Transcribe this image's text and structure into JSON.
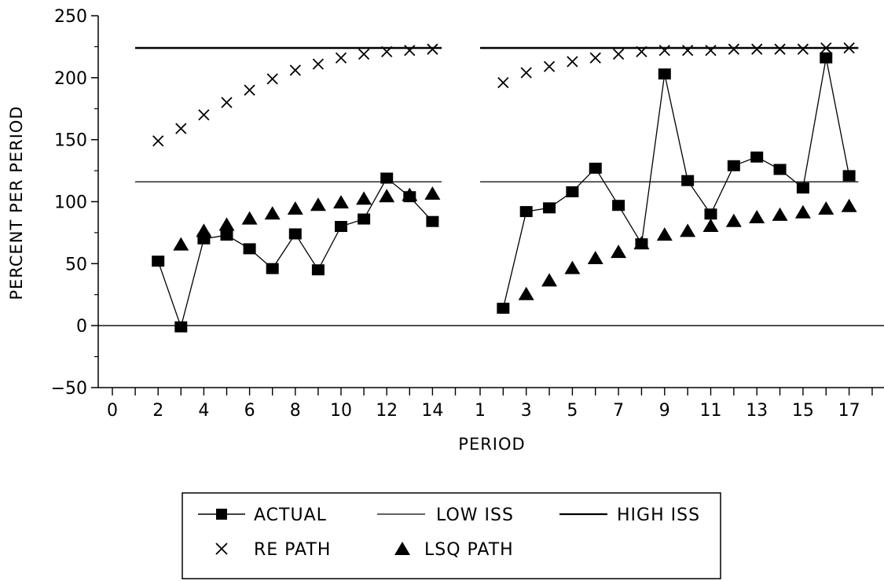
{
  "chart_data": {
    "type": "line",
    "xlabel": "PERIOD",
    "ylabel": "PERCENT PER PERIOD",
    "ylim": [
      -50,
      250
    ],
    "yticks": [
      250,
      200,
      150,
      100,
      50,
      0,
      -50
    ],
    "grid": false,
    "legend_position": "bottom",
    "panels": [
      {
        "xlim": [
          0,
          15
        ],
        "xtick_labels": [
          {
            "x": 0,
            "label": "0"
          },
          {
            "x": 2,
            "label": "2"
          },
          {
            "x": 4,
            "label": "4"
          },
          {
            "x": 6,
            "label": "6"
          },
          {
            "x": 8,
            "label": "8"
          },
          {
            "x": 10,
            "label": "10"
          },
          {
            "x": 12,
            "label": "12"
          },
          {
            "x": 14,
            "label": "14"
          }
        ],
        "high_iss": 224,
        "low_iss": 116,
        "actual": [
          [
            2,
            52
          ],
          [
            3,
            -1
          ],
          [
            4,
            70
          ],
          [
            5,
            73
          ],
          [
            6,
            62
          ],
          [
            7,
            46
          ],
          [
            8,
            74
          ],
          [
            9,
            45
          ],
          [
            10,
            80
          ],
          [
            11,
            86
          ],
          [
            12,
            119
          ],
          [
            13,
            104
          ],
          [
            14,
            84
          ]
        ],
        "re_path": [
          [
            2,
            149
          ],
          [
            3,
            159
          ],
          [
            4,
            170
          ],
          [
            5,
            180
          ],
          [
            6,
            190
          ],
          [
            7,
            199
          ],
          [
            8,
            206
          ],
          [
            9,
            211
          ],
          [
            10,
            216
          ],
          [
            11,
            219
          ],
          [
            12,
            221
          ],
          [
            13,
            222
          ],
          [
            14,
            223
          ]
        ],
        "lsq_path": [
          [
            3,
            65
          ],
          [
            4,
            76
          ],
          [
            5,
            81
          ],
          [
            6,
            86
          ],
          [
            7,
            90
          ],
          [
            8,
            94
          ],
          [
            9,
            97
          ],
          [
            10,
            99
          ],
          [
            11,
            102
          ],
          [
            12,
            104
          ],
          [
            13,
            105
          ],
          [
            14,
            106
          ]
        ]
      },
      {
        "xlim": [
          1,
          18
        ],
        "xtick_labels": [
          {
            "x": 1,
            "label": "1"
          },
          {
            "x": 3,
            "label": "3"
          },
          {
            "x": 5,
            "label": "5"
          },
          {
            "x": 7,
            "label": "7"
          },
          {
            "x": 9,
            "label": "9"
          },
          {
            "x": 11,
            "label": "11"
          },
          {
            "x": 13,
            "label": "13"
          },
          {
            "x": 15,
            "label": "15"
          },
          {
            "x": 17,
            "label": "17"
          }
        ],
        "high_iss": 224,
        "low_iss": 116,
        "actual": [
          [
            2,
            14
          ],
          [
            3,
            92
          ],
          [
            4,
            95
          ],
          [
            5,
            108
          ],
          [
            6,
            127
          ],
          [
            7,
            97
          ],
          [
            8,
            66
          ],
          [
            9,
            203
          ],
          [
            10,
            117
          ],
          [
            11,
            90
          ],
          [
            12,
            129
          ],
          [
            13,
            136
          ],
          [
            14,
            126
          ],
          [
            15,
            111
          ],
          [
            16,
            216
          ],
          [
            17,
            121
          ]
        ],
        "re_path": [
          [
            2,
            196
          ],
          [
            3,
            204
          ],
          [
            4,
            209
          ],
          [
            5,
            213
          ],
          [
            6,
            216
          ],
          [
            7,
            219
          ],
          [
            8,
            221
          ],
          [
            9,
            222
          ],
          [
            10,
            222
          ],
          [
            11,
            222
          ],
          [
            12,
            223
          ],
          [
            13,
            223
          ],
          [
            14,
            223
          ],
          [
            15,
            223
          ],
          [
            16,
            224
          ],
          [
            17,
            224
          ]
        ],
        "lsq_path": [
          [
            3,
            25
          ],
          [
            4,
            36
          ],
          [
            5,
            46
          ],
          [
            6,
            54
          ],
          [
            7,
            59
          ],
          [
            8,
            66
          ],
          [
            9,
            73
          ],
          [
            10,
            76
          ],
          [
            11,
            80
          ],
          [
            12,
            84
          ],
          [
            13,
            87
          ],
          [
            14,
            89
          ],
          [
            15,
            91
          ],
          [
            16,
            94
          ],
          [
            17,
            96
          ]
        ]
      }
    ],
    "legend": [
      "ACTUAL",
      "LOW ISS",
      "HIGH ISS",
      "RE PATH",
      "LSQ PATH"
    ]
  }
}
